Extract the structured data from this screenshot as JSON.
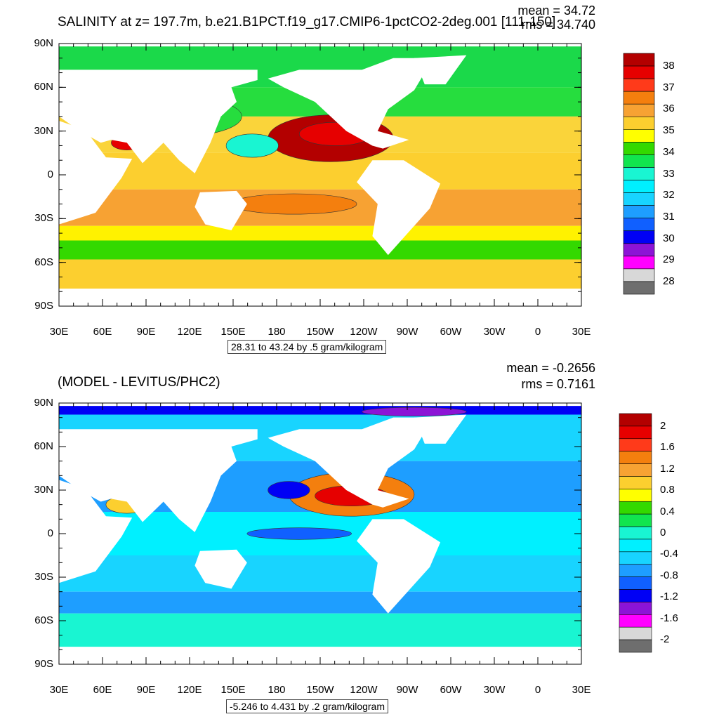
{
  "chart_data": [
    {
      "type": "heatmap",
      "title": "SALINITY at z= 197.7m, b.e21.B1PCT.f19_g17.CMIP6-1pctCO2-2deg.001 [111-150]",
      "stats": {
        "mean": "mean = 34.72",
        "rms": "rms = 34.740"
      },
      "range_label": "28.31 to 43.24 by .5 gram/kilogram",
      "y_ticks": [
        "90N",
        "60N",
        "30N",
        "0",
        "30S",
        "60S",
        "90S"
      ],
      "x_ticks": [
        "30E",
        "60E",
        "90E",
        "120E",
        "150E",
        "180",
        "150W",
        "120W",
        "90W",
        "60W",
        "30W",
        "0",
        "30E"
      ],
      "colorbar": {
        "labels": [
          "38",
          "37",
          "36",
          "35",
          "34",
          "33",
          "32",
          "31",
          "30",
          "29",
          "28"
        ],
        "colors": [
          "#b30000",
          "#e60000",
          "#ff3a1a",
          "#f47f0e",
          "#f7a233",
          "#fccf2f",
          "#ffff00",
          "#33d900",
          "#11e54f",
          "#19f5d2",
          "#00f0ff",
          "#18d4ff",
          "#1e9eff",
          "#1060ff",
          "#0000f5",
          "#8c14d6",
          "#ff00ff",
          "#d8d8d8",
          "#6e6e6e"
        ]
      }
    },
    {
      "type": "heatmap",
      "title": "(MODEL - LEVITUS/PHC2)",
      "stats": {
        "mean": "mean = -0.2656",
        "rms": "rms = 0.7161"
      },
      "range_label": "-5.246 to 4.431 by .2 gram/kilogram",
      "y_ticks": [
        "90N",
        "60N",
        "30N",
        "0",
        "30S",
        "60S",
        "90S"
      ],
      "x_ticks": [
        "30E",
        "60E",
        "90E",
        "120E",
        "150E",
        "180",
        "150W",
        "120W",
        "90W",
        "60W",
        "30W",
        "0",
        "30E"
      ],
      "colorbar": {
        "labels": [
          "2",
          "1.6",
          "1.2",
          "0.8",
          "0.4",
          "0",
          "-0.4",
          "-0.8",
          "-1.2",
          "-1.6",
          "-2"
        ],
        "colors": [
          "#b30000",
          "#e60000",
          "#ff3a1a",
          "#f47f0e",
          "#f7a233",
          "#fccf2f",
          "#ffff00",
          "#33d900",
          "#11e54f",
          "#19f5d2",
          "#00f0ff",
          "#18d4ff",
          "#1e9eff",
          "#1060ff",
          "#0000f5",
          "#8c14d6",
          "#ff00ff",
          "#d8d8d8",
          "#6e6e6e"
        ]
      }
    }
  ]
}
